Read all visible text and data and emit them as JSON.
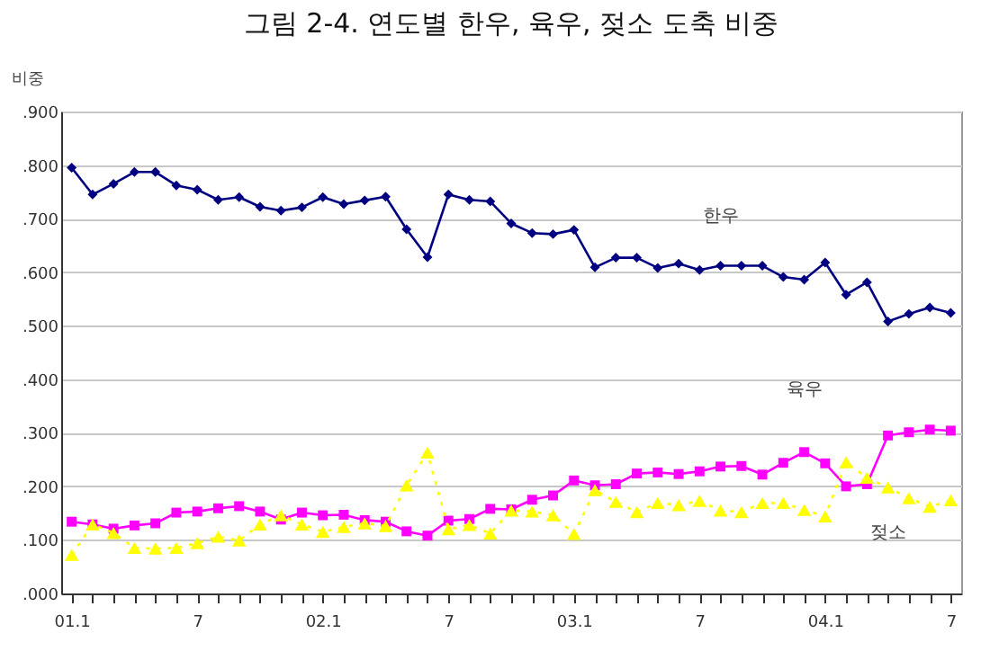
{
  "chart_data": {
    "type": "line",
    "title": "그림 2-4.   연도별 한우, 육우, 젖소 도축 비중",
    "ylabel": "비중",
    "categories": [
      "01.1",
      null,
      null,
      null,
      null,
      null,
      "7",
      null,
      null,
      null,
      null,
      null,
      "02.1",
      null,
      null,
      null,
      null,
      null,
      "7",
      null,
      null,
      null,
      null,
      null,
      "03.1",
      null,
      null,
      null,
      null,
      null,
      "7",
      null,
      null,
      null,
      null,
      null,
      "04.1",
      null,
      null,
      null,
      null,
      null,
      "7"
    ],
    "series": [
      {
        "name": "한우",
        "color": "#000080",
        "marker": "diamond",
        "line_style": "solid",
        "values": [
          0.795,
          0.745,
          0.765,
          0.787,
          0.787,
          0.762,
          0.754,
          0.735,
          0.74,
          0.722,
          0.715,
          0.721,
          0.74,
          0.727,
          0.734,
          0.741,
          0.68,
          0.628,
          0.745,
          0.735,
          0.732,
          0.691,
          0.673,
          0.671,
          0.679,
          0.609,
          0.627,
          0.627,
          0.608,
          0.616,
          0.604,
          0.612,
          0.612,
          0.612,
          0.591,
          0.586,
          0.618,
          0.558,
          0.581,
          0.508,
          0.522,
          0.534,
          0.524
        ]
      },
      {
        "name": "육우",
        "color": "#ff00ff",
        "marker": "square",
        "line_style": "solid",
        "values": [
          0.134,
          0.129,
          0.121,
          0.127,
          0.131,
          0.151,
          0.153,
          0.159,
          0.163,
          0.153,
          0.138,
          0.151,
          0.146,
          0.147,
          0.137,
          0.134,
          0.116,
          0.108,
          0.136,
          0.139,
          0.158,
          0.157,
          0.175,
          0.183,
          0.211,
          0.202,
          0.204,
          0.224,
          0.226,
          0.223,
          0.228,
          0.237,
          0.238,
          0.222,
          0.244,
          0.264,
          0.243,
          0.2,
          0.204,
          0.295,
          0.301,
          0.306,
          0.304
        ]
      },
      {
        "name": "젖소",
        "color": "#ffff00",
        "marker": "triangle",
        "line_style": "dotted",
        "values": [
          0.072,
          0.129,
          0.113,
          0.085,
          0.084,
          0.085,
          0.094,
          0.106,
          0.099,
          0.129,
          0.146,
          0.129,
          0.115,
          0.124,
          0.131,
          0.126,
          0.202,
          0.263,
          0.12,
          0.128,
          0.112,
          0.155,
          0.153,
          0.146,
          0.111,
          0.193,
          0.171,
          0.152,
          0.169,
          0.165,
          0.173,
          0.155,
          0.152,
          0.169,
          0.169,
          0.156,
          0.144,
          0.245,
          0.216,
          0.198,
          0.178,
          0.162,
          0.174
        ]
      }
    ],
    "ylim": [
      0,
      0.9
    ],
    "yticks": [
      {
        "value": 0,
        "label": ".000"
      },
      {
        "value": 0.1,
        "label": ".100"
      },
      {
        "value": 0.2,
        "label": ".200"
      },
      {
        "value": 0.3,
        "label": ".300"
      },
      {
        "value": 0.4,
        "label": ".400"
      },
      {
        "value": 0.5,
        "label": ".500"
      },
      {
        "value": 0.6,
        "label": ".600"
      },
      {
        "value": 0.7,
        "label": ".700"
      },
      {
        "value": 0.8,
        "label": ".800"
      },
      {
        "value": 0.9,
        "label": ".900"
      }
    ],
    "grid": "y"
  }
}
